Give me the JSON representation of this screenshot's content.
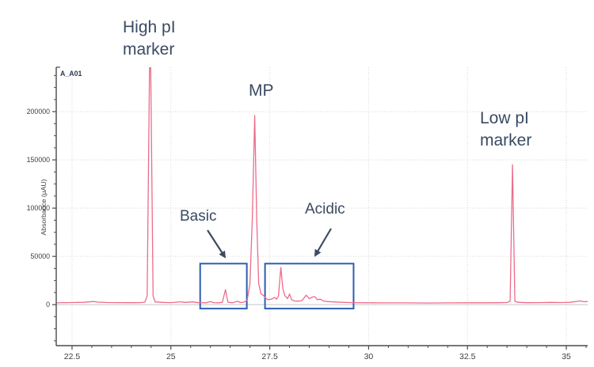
{
  "figure": {
    "trace_id_label": "A_A01",
    "background": "#ffffff"
  },
  "annotations": {
    "color": "#3a4a63",
    "high_pi": {
      "line1": "High pI",
      "line2": "marker"
    },
    "mp": {
      "label": "MP"
    },
    "low_pi": {
      "line1": "Low pI",
      "line2": "marker"
    },
    "basic": {
      "label": "Basic"
    },
    "acidic": {
      "label": "Acidic"
    }
  },
  "chart_data": {
    "type": "line",
    "title": "",
    "xlabel": "",
    "ylabel": "Absorbance (µAU)",
    "xlim": [
      22.1,
      35.54
    ],
    "ylim": [
      -42500,
      246000
    ],
    "x_ticks": [
      22.5,
      25,
      27.5,
      30,
      32.5,
      35
    ],
    "x_tick_labels": [
      "22.5",
      "25",
      "27.5",
      "30",
      "32.5",
      "35"
    ],
    "x_minor_step": 0.5,
    "y_ticks": [
      0,
      50000,
      100000,
      150000,
      200000
    ],
    "y_tick_labels": [
      "0",
      "50000",
      "100000",
      "150000",
      "200000"
    ],
    "y_minor_step": 12500,
    "grid": {
      "major_dotted": true,
      "zero_line_solid": true,
      "grid_color": "#d8d8d8",
      "zero_line_color": "#c6c6c6"
    },
    "axis_color": "#4a4a4a",
    "series": [
      {
        "name": "A_A01",
        "color": "#ec6c8c",
        "points": [
          [
            22.1,
            1800
          ],
          [
            22.3,
            2100
          ],
          [
            22.5,
            2200
          ],
          [
            22.8,
            2400
          ],
          [
            23.05,
            3200
          ],
          [
            23.15,
            2600
          ],
          [
            23.4,
            2200
          ],
          [
            23.7,
            2100
          ],
          [
            24.0,
            2000
          ],
          [
            24.2,
            2100
          ],
          [
            24.34,
            2500
          ],
          [
            24.4,
            9000
          ],
          [
            24.46,
            245500
          ],
          [
            24.49,
            245500
          ],
          [
            24.55,
            9000
          ],
          [
            24.6,
            2800
          ],
          [
            24.8,
            2300
          ],
          [
            25.0,
            2100
          ],
          [
            25.25,
            2900
          ],
          [
            25.35,
            2300
          ],
          [
            25.55,
            2800
          ],
          [
            25.7,
            2000
          ],
          [
            25.9,
            1900
          ],
          [
            26.0,
            3200
          ],
          [
            26.08,
            2100
          ],
          [
            26.2,
            1900
          ],
          [
            26.3,
            2300
          ],
          [
            26.38,
            15500
          ],
          [
            26.44,
            2600
          ],
          [
            26.55,
            1800
          ],
          [
            26.68,
            3500
          ],
          [
            26.76,
            2200
          ],
          [
            26.85,
            2600
          ],
          [
            26.93,
            4500
          ],
          [
            27.0,
            22000
          ],
          [
            27.06,
            90000
          ],
          [
            27.12,
            196000
          ],
          [
            27.17,
            90000
          ],
          [
            27.22,
            22000
          ],
          [
            27.28,
            11000
          ],
          [
            27.34,
            9500
          ],
          [
            27.4,
            6500
          ],
          [
            27.46,
            5200
          ],
          [
            27.55,
            5800
          ],
          [
            27.62,
            7500
          ],
          [
            27.67,
            5800
          ],
          [
            27.72,
            9000
          ],
          [
            27.78,
            38500
          ],
          [
            27.83,
            17000
          ],
          [
            27.88,
            9500
          ],
          [
            27.95,
            6200
          ],
          [
            28.0,
            11000
          ],
          [
            28.05,
            5200
          ],
          [
            28.12,
            3800
          ],
          [
            28.22,
            3600
          ],
          [
            28.32,
            4300
          ],
          [
            28.42,
            9800
          ],
          [
            28.5,
            6200
          ],
          [
            28.58,
            7800
          ],
          [
            28.64,
            8300
          ],
          [
            28.7,
            5200
          ],
          [
            28.78,
            5600
          ],
          [
            28.85,
            3800
          ],
          [
            28.95,
            3200
          ],
          [
            29.1,
            2800
          ],
          [
            29.3,
            2400
          ],
          [
            29.6,
            2100
          ],
          [
            30.0,
            1900
          ],
          [
            30.5,
            1800
          ],
          [
            31.0,
            1800
          ],
          [
            31.5,
            1700
          ],
          [
            32.0,
            1800
          ],
          [
            32.5,
            1900
          ],
          [
            33.0,
            1900
          ],
          [
            33.3,
            2000
          ],
          [
            33.5,
            2200
          ],
          [
            33.58,
            3500
          ],
          [
            33.64,
            145000
          ],
          [
            33.7,
            3500
          ],
          [
            33.78,
            2400
          ],
          [
            34.0,
            2000
          ],
          [
            34.3,
            2100
          ],
          [
            34.6,
            2300
          ],
          [
            34.9,
            2200
          ],
          [
            35.1,
            2400
          ],
          [
            35.35,
            3800
          ],
          [
            35.45,
            3000
          ],
          [
            35.54,
            3200
          ]
        ]
      }
    ],
    "regions": [
      {
        "name": "basic",
        "x1": 25.74,
        "x2": 26.92,
        "y1": -4100,
        "y2": 42500,
        "stroke": "#2b5fb0"
      },
      {
        "name": "acidic",
        "x1": 27.38,
        "x2": 29.62,
        "y1": -4100,
        "y2": 42500,
        "stroke": "#2b5fb0"
      }
    ],
    "peaks_of_interest": [
      {
        "label": "High pI marker",
        "x": 24.47,
        "height_uau": 245000,
        "note": "clipped at plot top"
      },
      {
        "label": "MP",
        "x": 27.12,
        "height_uau": 196000
      },
      {
        "label": "Basic peak",
        "x": 26.38,
        "height_uau": 15500
      },
      {
        "label": "Acidic peak",
        "x": 27.78,
        "height_uau": 38500
      },
      {
        "label": "Low pI marker",
        "x": 33.64,
        "height_uau": 145000
      }
    ],
    "legend": "none"
  }
}
